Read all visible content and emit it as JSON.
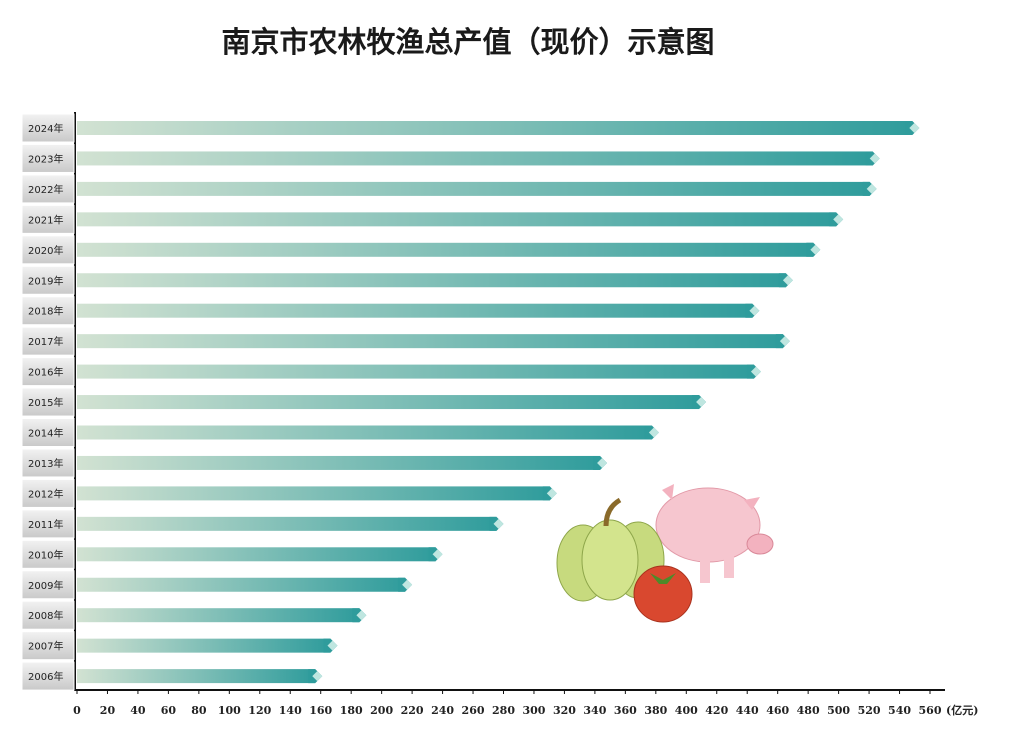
{
  "chart_data": {
    "type": "bar",
    "orientation": "horizontal",
    "title": "南京市农林牧渔总产值（现价）示意图",
    "x_label": "(亿元)",
    "categories": [
      "2024年",
      "2023年",
      "2022年",
      "2021年",
      "2020年",
      "2019年",
      "2018年",
      "2017年",
      "2016年",
      "2015年",
      "2014年",
      "2013年",
      "2012年",
      "2011年",
      "2010年",
      "2009年",
      "2008年",
      "2007年",
      "2006年"
    ],
    "values": [
      553,
      527,
      525,
      503,
      488,
      470,
      448,
      468,
      449,
      413,
      382,
      348,
      315,
      280,
      240,
      220,
      190,
      171,
      161
    ],
    "color": "#2f9c9c",
    "xlim": [
      0,
      560
    ],
    "xticks": [
      0,
      20,
      40,
      60,
      80,
      100,
      120,
      140,
      160,
      180,
      200,
      220,
      240,
      260,
      280,
      300,
      320,
      340,
      360,
      380,
      400,
      420,
      440,
      460,
      480,
      500,
      520,
      540,
      560
    ],
    "grid": false
  }
}
